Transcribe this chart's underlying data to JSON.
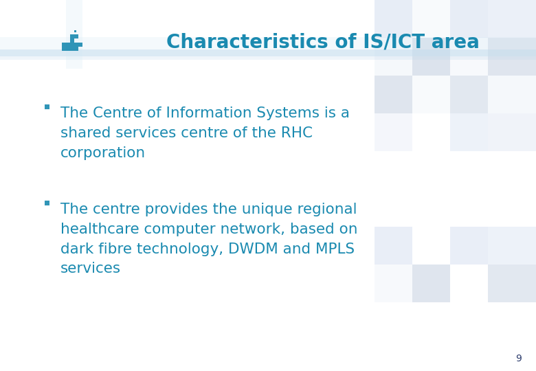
{
  "title": "Characteristics of IS/ICT area",
  "title_color": "#1a8ab0",
  "title_fontsize": 20,
  "bullet_color": "#1a8ab0",
  "text_color": "#1a8ab0",
  "text_fontsize": 15.5,
  "bg_color": "#ffffff",
  "slide_number": "9",
  "slide_number_color": "#2a3a6b",
  "bullet_items": [
    "The Centre of Information Systems is a\nshared services centre of the RHC\ncorporation",
    "The centre provides the unique regional\nhealthcare computer network, based on\ndark fibre technology, DWDM and MPLS\nservices"
  ],
  "checker_color_1": "#d4dff0",
  "checker_color_2": "#c0ccdf",
  "checker_color_3": "#e0e8f4",
  "cross_blue_dark": "#1a8ab0",
  "cross_blue_light": "#90c8e0"
}
